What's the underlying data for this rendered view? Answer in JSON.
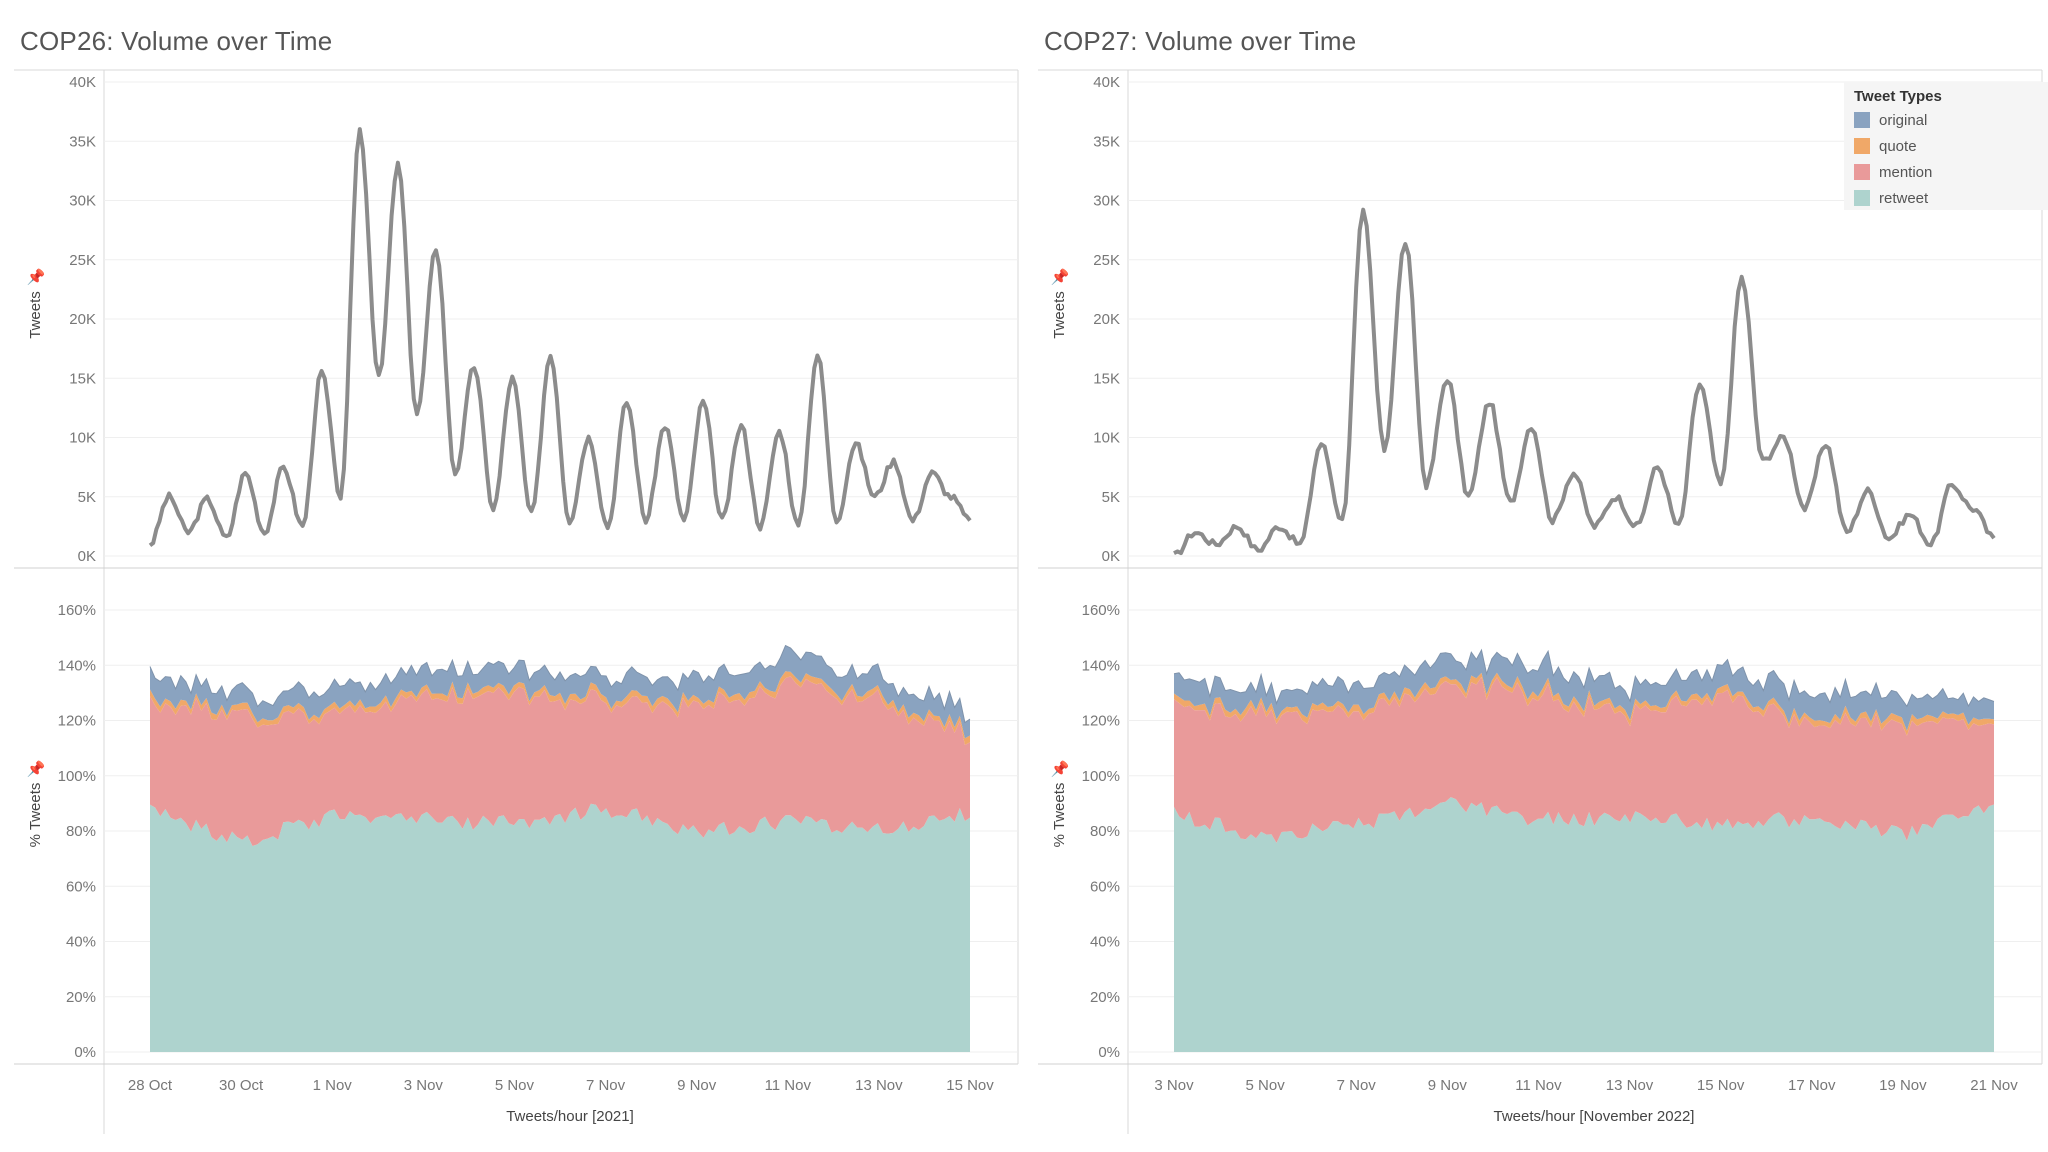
{
  "colors": {
    "original": "#8aa3c0",
    "quote": "#f0a868",
    "mention": "#e99a9a",
    "retweet": "#aed3ce",
    "volume_line": "#8c8c8c"
  },
  "legend": {
    "title": "Tweet Types",
    "items": [
      {
        "label": "original",
        "color": "#8aa3c0"
      },
      {
        "label": "quote",
        "color": "#f0a868"
      },
      {
        "label": "mention",
        "color": "#e99a9a"
      },
      {
        "label": "retweet",
        "color": "#aed3ce"
      }
    ]
  },
  "chart_data": [
    {
      "type": "line",
      "title": "COP26: Volume over Time",
      "ylabel": "Tweets",
      "xlabel": "Tweets/hour [2021]",
      "ylim": [
        0,
        40000
      ],
      "yticks": [
        "0K",
        "5K",
        "10K",
        "15K",
        "20K",
        "25K",
        "30K",
        "35K",
        "40K"
      ],
      "xrange_days": [
        "28 Oct",
        "15 Nov"
      ],
      "xticks": [
        "28 Oct",
        "30 Oct",
        "1 Nov",
        "3 Nov",
        "5 Nov",
        "7 Nov",
        "9 Nov",
        "11 Nov",
        "13 Nov",
        "15 Nov"
      ],
      "series": [
        {
          "x": [
            "28 Oct 00:00",
            "28 Oct 06:00",
            "28 Oct 14:00",
            "29 Oct 03:00",
            "29 Oct 15:00",
            "30 Oct 02:00",
            "30 Oct 15:00",
            "31 Oct 03:00",
            "31 Oct 16:00",
            "1 Nov 02:00",
            "1 Nov 10:00",
            "1 Nov 14:00",
            "1 Nov 19:00",
            "2 Nov 04:00",
            "2 Nov 09:00",
            "2 Nov 15:00",
            "2 Nov 20:00",
            "3 Nov 04:00",
            "3 Nov 10:00",
            "3 Nov 16:00",
            "3 Nov 23:00",
            "4 Nov 05:00",
            "4 Nov 16:00",
            "5 Nov 03:00",
            "5 Nov 17:00",
            "6 Nov 03:00",
            "6 Nov 17:00",
            "7 Nov 03:00",
            "7 Nov 17:00",
            "8 Nov 03:00",
            "8 Nov 17:00",
            "9 Nov 03:00",
            "9 Nov 17:00",
            "10 Nov 03:00",
            "10 Nov 17:00",
            "11 Nov 03:00",
            "11 Nov 17:00",
            "12 Nov 03:00",
            "12 Nov 17:00",
            "13 Nov 03:00",
            "13 Nov 17:00",
            "14 Nov 03:00",
            "14 Nov 17:00",
            "15 Nov 00:00"
          ],
          "values": [
            1000,
            5000,
            2000,
            4800,
            1500,
            7000,
            2000,
            7500,
            2500,
            15500,
            5000,
            36000,
            15000,
            33000,
            12000,
            26000,
            7000,
            16000,
            4000,
            15000,
            3500,
            17000,
            3000,
            10000,
            2500,
            13000,
            3000,
            11000,
            3000,
            13000,
            3000,
            11000,
            2500,
            10500,
            2500,
            17000,
            3000,
            9500,
            5000,
            8000,
            3000,
            7000,
            5000,
            3000
          ]
        }
      ]
    },
    {
      "type": "area",
      "title": "",
      "ylabel": "% Tweets",
      "xlabel": "Tweets/hour [2021]",
      "ylim": [
        0,
        170
      ],
      "yticks": [
        "0%",
        "20%",
        "40%",
        "60%",
        "80%",
        "100%",
        "120%",
        "140%",
        "160%"
      ],
      "xticks": [
        "28 Oct",
        "30 Oct",
        "1 Nov",
        "3 Nov",
        "5 Nov",
        "7 Nov",
        "9 Nov",
        "11 Nov",
        "13 Nov",
        "15 Nov"
      ],
      "categories": [
        "28 Oct",
        "30 Oct",
        "1 Nov",
        "3 Nov",
        "5 Nov",
        "7 Nov",
        "9 Nov",
        "11 Nov",
        "13 Nov",
        "15 Nov"
      ],
      "stacked": true,
      "series": [
        {
          "name": "retweet",
          "values": [
            87,
            76,
            85,
            84,
            83,
            88,
            80,
            83,
            81,
            86
          ]
        },
        {
          "name": "mention",
          "values": [
            38,
            46,
            37,
            43,
            47,
            38,
            45,
            48,
            47,
            28
          ]
        },
        {
          "name": "quote",
          "values": [
            2,
            2,
            2,
            2,
            2,
            2,
            2,
            2,
            2,
            2
          ]
        },
        {
          "name": "original",
          "values": [
            8,
            6,
            7,
            8,
            7,
            7,
            8,
            8,
            7,
            7
          ]
        }
      ]
    },
    {
      "type": "line",
      "title": "COP27: Volume over Time",
      "ylabel": "Tweets",
      "xlabel": "Tweets/hour [November 2022]",
      "ylim": [
        0,
        40000
      ],
      "yticks": [
        "0K",
        "5K",
        "10K",
        "15K",
        "20K",
        "25K",
        "30K",
        "35K",
        "40K"
      ],
      "xticks": [
        "3 Nov",
        "5 Nov",
        "7 Nov",
        "9 Nov",
        "11 Nov",
        "13 Nov",
        "15 Nov",
        "17 Nov",
        "19 Nov",
        "21 Nov"
      ],
      "series": [
        {
          "x": [
            "3 Nov 00:00",
            "3 Nov 12:00",
            "4 Nov 00:00",
            "4 Nov 12:00",
            "5 Nov 00:00",
            "5 Nov 12:00",
            "6 Nov 00:00",
            "6 Nov 12:00",
            "7 Nov 00:00",
            "7 Nov 12:00",
            "8 Nov 00:00",
            "8 Nov 10:00",
            "8 Nov 17:00",
            "9 Nov 02:00",
            "9 Nov 12:00",
            "9 Nov 23:00",
            "10 Nov 12:00",
            "11 Nov 00:00",
            "11 Nov 12:00",
            "12 Nov 00:00",
            "12 Nov 12:00",
            "13 Nov 00:00",
            "13 Nov 12:00",
            "14 Nov 00:00",
            "14 Nov 12:00",
            "15 Nov 00:00",
            "15 Nov 08:00",
            "15 Nov 13:00",
            "16 Nov 00:00",
            "16 Nov 10:00",
            "16 Nov 16:00",
            "17 Nov 00:00",
            "17 Nov 12:00",
            "18 Nov 00:00",
            "18 Nov 12:00",
            "19 Nov 00:00",
            "19 Nov 12:00",
            "20 Nov 00:00",
            "20 Nov 12:00",
            "21 Nov 00:00"
          ],
          "values": [
            0,
            2000,
            1000,
            2500,
            500,
            2500,
            1000,
            9500,
            3000,
            29000,
            9000,
            26500,
            6000,
            15000,
            5000,
            13000,
            4500,
            11000,
            3000,
            7000,
            2500,
            5000,
            2500,
            7500,
            2500,
            14500,
            6000,
            23500,
            8000,
            10000,
            4000,
            9500,
            2000,
            5500,
            1500,
            3500,
            1000,
            6000,
            4000,
            1500
          ]
        }
      ]
    },
    {
      "type": "area",
      "title": "",
      "ylabel": "% Tweets",
      "xlabel": "Tweets/hour [November 2022]",
      "ylim": [
        0,
        170
      ],
      "yticks": [
        "0%",
        "20%",
        "40%",
        "60%",
        "80%",
        "100%",
        "120%",
        "140%",
        "160%"
      ],
      "xticks": [
        "3 Nov",
        "5 Nov",
        "7 Nov",
        "9 Nov",
        "11 Nov",
        "13 Nov",
        "15 Nov",
        "17 Nov",
        "19 Nov",
        "21 Nov"
      ],
      "categories": [
        "3 Nov",
        "5 Nov",
        "7 Nov",
        "9 Nov",
        "11 Nov",
        "13 Nov",
        "15 Nov",
        "17 Nov",
        "19 Nov",
        "21 Nov"
      ],
      "stacked": true,
      "series": [
        {
          "name": "retweet",
          "values": [
            86,
            78,
            82,
            90,
            84,
            85,
            82,
            85,
            79,
            88
          ]
        },
        {
          "name": "mention",
          "values": [
            39,
            45,
            40,
            43,
            45,
            37,
            47,
            35,
            40,
            29
          ]
        },
        {
          "name": "quote",
          "values": [
            2,
            2,
            2,
            2,
            2,
            2,
            2,
            2,
            2,
            2
          ]
        },
        {
          "name": "original",
          "values": [
            8,
            7,
            8,
            8,
            9,
            8,
            8,
            9,
            8,
            6
          ]
        }
      ]
    }
  ]
}
